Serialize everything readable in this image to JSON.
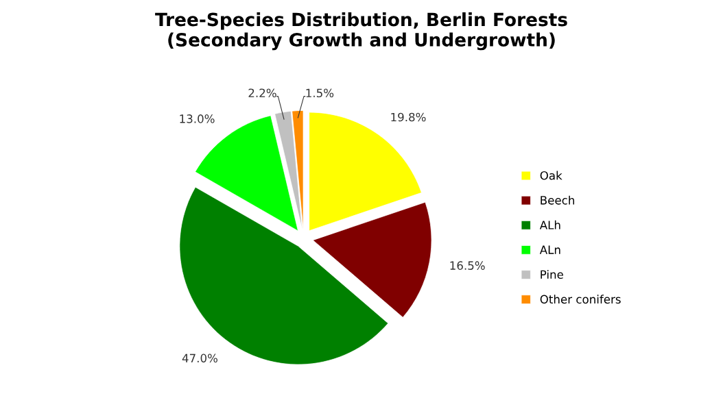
{
  "chart_data": {
    "type": "pie",
    "title": "Tree-Species Distribution, Berlin Forests\n(Secondary Growth and Undergrowth)",
    "categories": [
      "Oak",
      "Beech",
      "ALh",
      "ALn",
      "Pine",
      "Other conifers"
    ],
    "values": [
      19.8,
      16.5,
      47.0,
      13.0,
      2.2,
      1.5
    ],
    "value_labels": [
      "19.8%",
      "16.5%",
      "47.0%",
      "13.0%",
      "2.2%",
      "1.5%"
    ],
    "colors": [
      "#ffff00",
      "#800000",
      "#008000",
      "#00ff00",
      "#c0c0c0",
      "#ff8c00"
    ],
    "legend": "right"
  }
}
